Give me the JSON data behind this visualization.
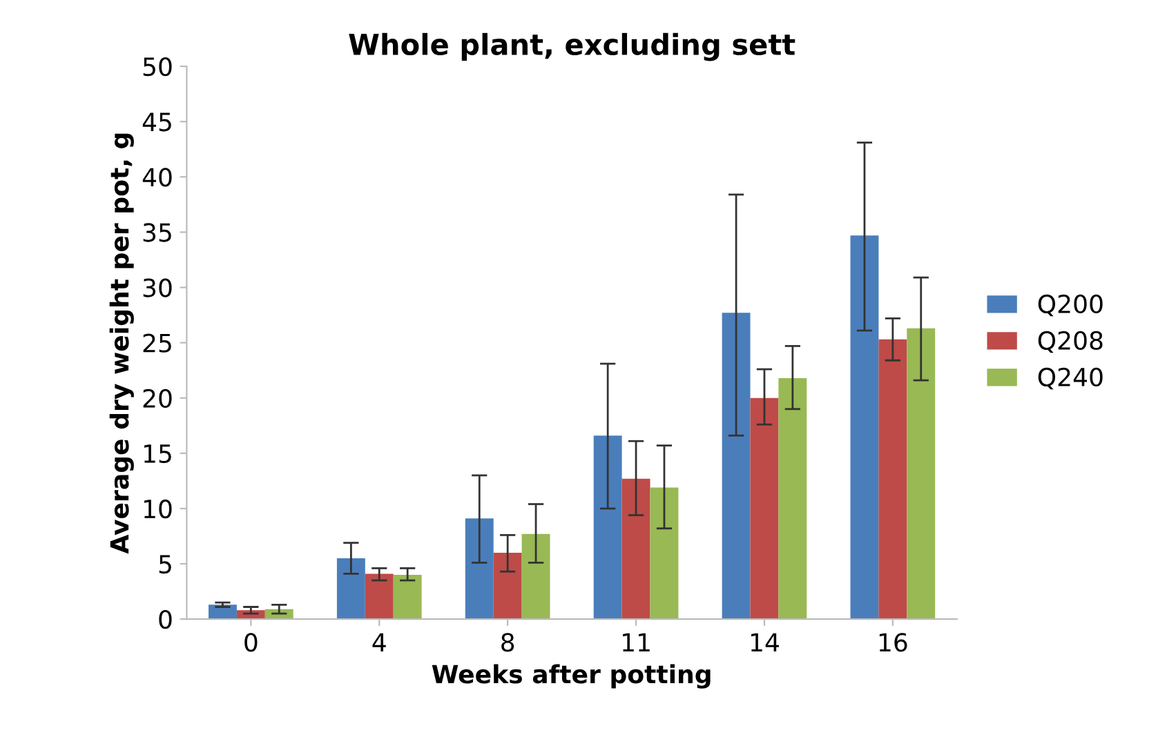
{
  "chart_data": {
    "type": "bar",
    "title": "Whole plant, excluding sett",
    "xlabel": "Weeks after potting",
    "ylabel": "Average dry weight per pot, g",
    "categories": [
      "0",
      "4",
      "8",
      "11",
      "14",
      "16"
    ],
    "series": [
      {
        "name": "Q200",
        "color": "#4a7ebb",
        "values": [
          1.3,
          5.5,
          9.1,
          16.6,
          27.7,
          34.7
        ],
        "errors": [
          [
            1.1,
            1.5
          ],
          [
            4.1,
            6.9
          ],
          [
            5.1,
            13.0
          ],
          [
            10.0,
            23.1
          ],
          [
            16.6,
            38.4
          ],
          [
            26.1,
            43.1
          ]
        ]
      },
      {
        "name": "Q208",
        "color": "#be4b48",
        "values": [
          0.8,
          4.1,
          6.0,
          12.7,
          20.0,
          25.3
        ],
        "errors": [
          [
            0.5,
            1.1
          ],
          [
            3.5,
            4.6
          ],
          [
            4.3,
            7.6
          ],
          [
            9.4,
            16.1
          ],
          [
            17.6,
            22.6
          ],
          [
            23.4,
            27.2
          ]
        ]
      },
      {
        "name": "Q240",
        "color": "#98b954",
        "values": [
          0.9,
          4.0,
          7.7,
          11.9,
          21.8,
          26.3
        ],
        "errors": [
          [
            0.5,
            1.3
          ],
          [
            3.5,
            4.6
          ],
          [
            5.1,
            10.4
          ],
          [
            8.2,
            15.7
          ],
          [
            19.0,
            24.7
          ],
          [
            21.6,
            30.9
          ]
        ]
      }
    ],
    "ylim": [
      0,
      50
    ],
    "yticks": [
      0,
      5,
      10,
      15,
      20,
      25,
      30,
      35,
      40,
      45,
      50
    ],
    "grid": false,
    "legend": "right"
  }
}
